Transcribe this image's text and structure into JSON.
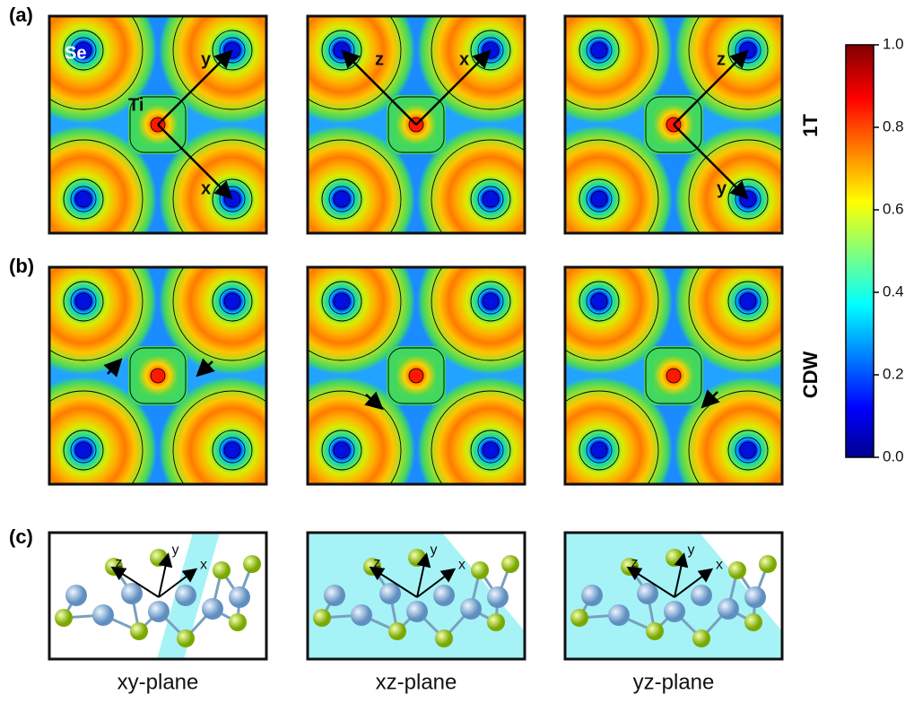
{
  "panel_labels": [
    "(a)",
    "(b)",
    "(c)"
  ],
  "row_labels": [
    "1T",
    "CDW"
  ],
  "atom_labels": [
    "Se",
    "Ti"
  ],
  "row_a_axes": [
    [
      "y",
      "x"
    ],
    [
      "z",
      "x"
    ],
    [
      "z",
      "y"
    ]
  ],
  "row_c_axes": [
    [
      "z",
      "y",
      "x"
    ],
    [
      "z",
      "y",
      "x"
    ],
    [
      "z",
      "y",
      "x"
    ]
  ],
  "planes": [
    "xy-plane",
    "xz-plane",
    "yz-plane"
  ],
  "colorbar": {
    "lim": [
      0,
      1
    ],
    "ticks": [
      {
        "value": 0,
        "label": "0.0"
      },
      {
        "value": 0.2,
        "label": "0.2"
      },
      {
        "value": 0.4,
        "label": "0.4"
      },
      {
        "value": 0.6,
        "label": "0.6"
      },
      {
        "value": 0.8,
        "label": "0.8"
      },
      {
        "value": 1,
        "label": "1.0"
      }
    ]
  }
}
